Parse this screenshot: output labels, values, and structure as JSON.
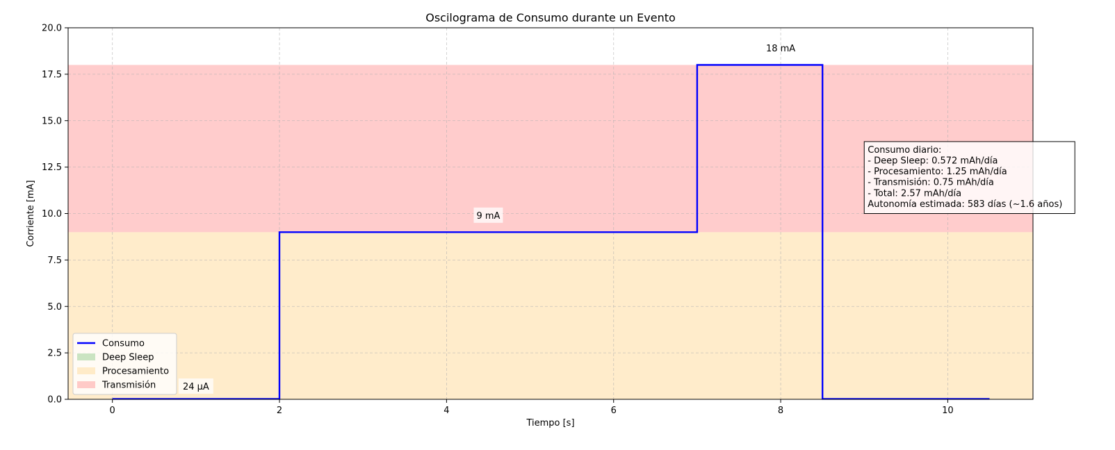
{
  "chart_data": {
    "type": "line",
    "title": "Oscilograma de Consumo durante un Evento",
    "xlabel": "Tiempo [s]",
    "ylabel": "Corriente [mA]",
    "xlim": [
      -0.53,
      11.02
    ],
    "ylim": [
      0,
      20
    ],
    "x_ticks": [
      0,
      2,
      4,
      6,
      8,
      10
    ],
    "x_tick_labels": [
      "0",
      "2",
      "4",
      "6",
      "8",
      "10"
    ],
    "y_ticks": [
      0,
      2.5,
      5,
      7.5,
      10,
      12.5,
      15,
      17.5,
      20
    ],
    "y_tick_labels": [
      "0.0",
      "2.5",
      "5.0",
      "7.5",
      "10.0",
      "12.5",
      "15.0",
      "17.5",
      "20.0"
    ],
    "grid": true,
    "legend_position": "lower left",
    "series": [
      {
        "name": "Consumo",
        "color": "#0000ff",
        "step": true,
        "x": [
          0,
          2,
          2,
          7,
          7,
          8.5,
          8.5,
          10.5
        ],
        "y": [
          0.024,
          0.024,
          9,
          9,
          18,
          18,
          0.024,
          0.024
        ]
      }
    ],
    "bands": [
      {
        "name": "Deep Sleep",
        "y0": 0,
        "y1": 0.024,
        "color": "#2ca02c",
        "opacity": 0.25
      },
      {
        "name": "Procesamiento",
        "y0": 0,
        "y1": 9,
        "color": "#ffe4b5",
        "opacity": 0.7
      },
      {
        "name": "Transmisión",
        "y0": 9,
        "y1": 18,
        "color": "#ff9999",
        "opacity": 0.5
      }
    ],
    "annotations": [
      {
        "text": "24 μA",
        "x": 1.0,
        "y": 0.6,
        "boxed": true
      },
      {
        "text": "9 mA",
        "x": 4.5,
        "y": 9.8,
        "boxed": true
      },
      {
        "text": "18 mA",
        "x": 8.0,
        "y": 18.8,
        "boxed": false
      }
    ],
    "info_box": {
      "lines": [
        "Consumo diario:",
        "- Deep Sleep: 0.572 mAh/día",
        "- Procesamiento: 1.25 mAh/día",
        "- Transmisión: 0.75 mAh/día",
        "- Total: 2.57 mAh/día",
        "Autonomía estimada: 583 días (~1.6 años)"
      ],
      "x": 9.0,
      "y": 10.0
    }
  }
}
